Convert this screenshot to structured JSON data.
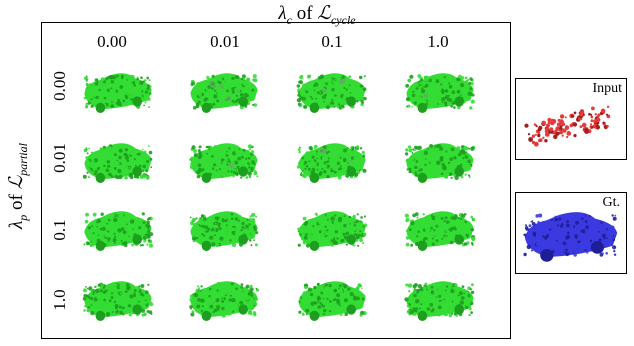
{
  "title": {
    "lambda": "λ",
    "sub": "c",
    "of": "of",
    "loss": "ℒ",
    "loss_sub": "cycle"
  },
  "ylabel": {
    "lambda": "λ",
    "sub": "p",
    "of": "of",
    "loss": "ℒ",
    "loss_sub": "partial"
  },
  "columns": [
    "0.00",
    "0.01",
    "0.1",
    "1.0"
  ],
  "rows": [
    "0.00",
    "0.01",
    "0.1",
    "1.0"
  ],
  "input_label": "Input",
  "gt_label": "Gt.",
  "colors": {
    "pred": "#33dd33",
    "pred_dark": "#1e9e1e",
    "input": "#e63b3b",
    "input_dark": "#a01e1e",
    "gt": "#3a3ae0",
    "gt_dark": "#1e1e99"
  }
}
